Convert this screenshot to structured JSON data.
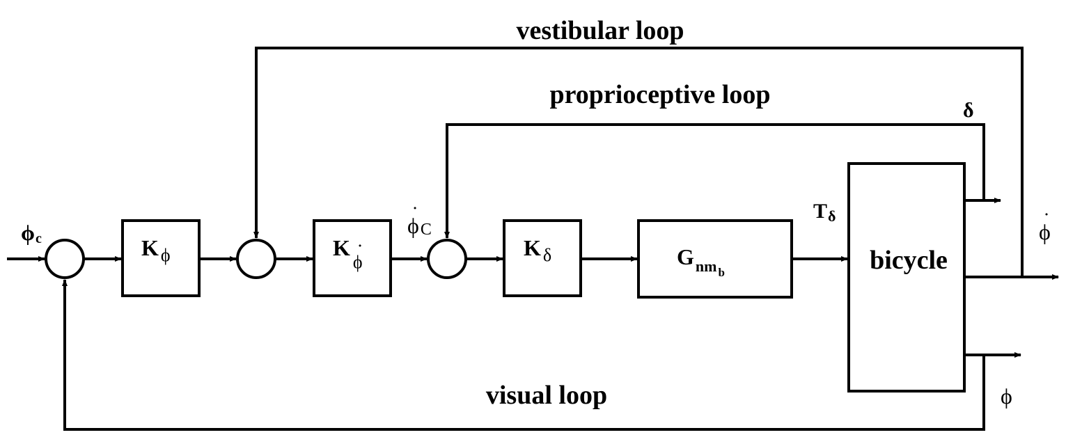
{
  "loops": {
    "vestibular": "vestibular loop",
    "proprioceptive": "proprioceptive loop",
    "visual": "visual loop"
  },
  "signals": {
    "phi_c_base": "ϕ",
    "phi_c_sub": "c",
    "phidot_c_base": "ϕ",
    "phidot_c_dot": "˙",
    "phidot_c_sub": "C",
    "t_delta_base": "T",
    "t_delta_sub": "δ",
    "delta": "δ",
    "phidot_out_base": "ϕ",
    "phidot_out_dot": "˙",
    "phi_out": "ϕ"
  },
  "blocks": {
    "k_phi_base": "K",
    "k_phi_sub": "ϕ",
    "k_phidot_base": "K",
    "k_phidot_sub": "ϕ",
    "k_phidot_dot": "˙",
    "k_delta_base": "K",
    "k_delta_sub": "δ",
    "g_base": "G",
    "g_sub": "nm",
    "g_subsub": "b",
    "bicycle": "bicycle"
  }
}
